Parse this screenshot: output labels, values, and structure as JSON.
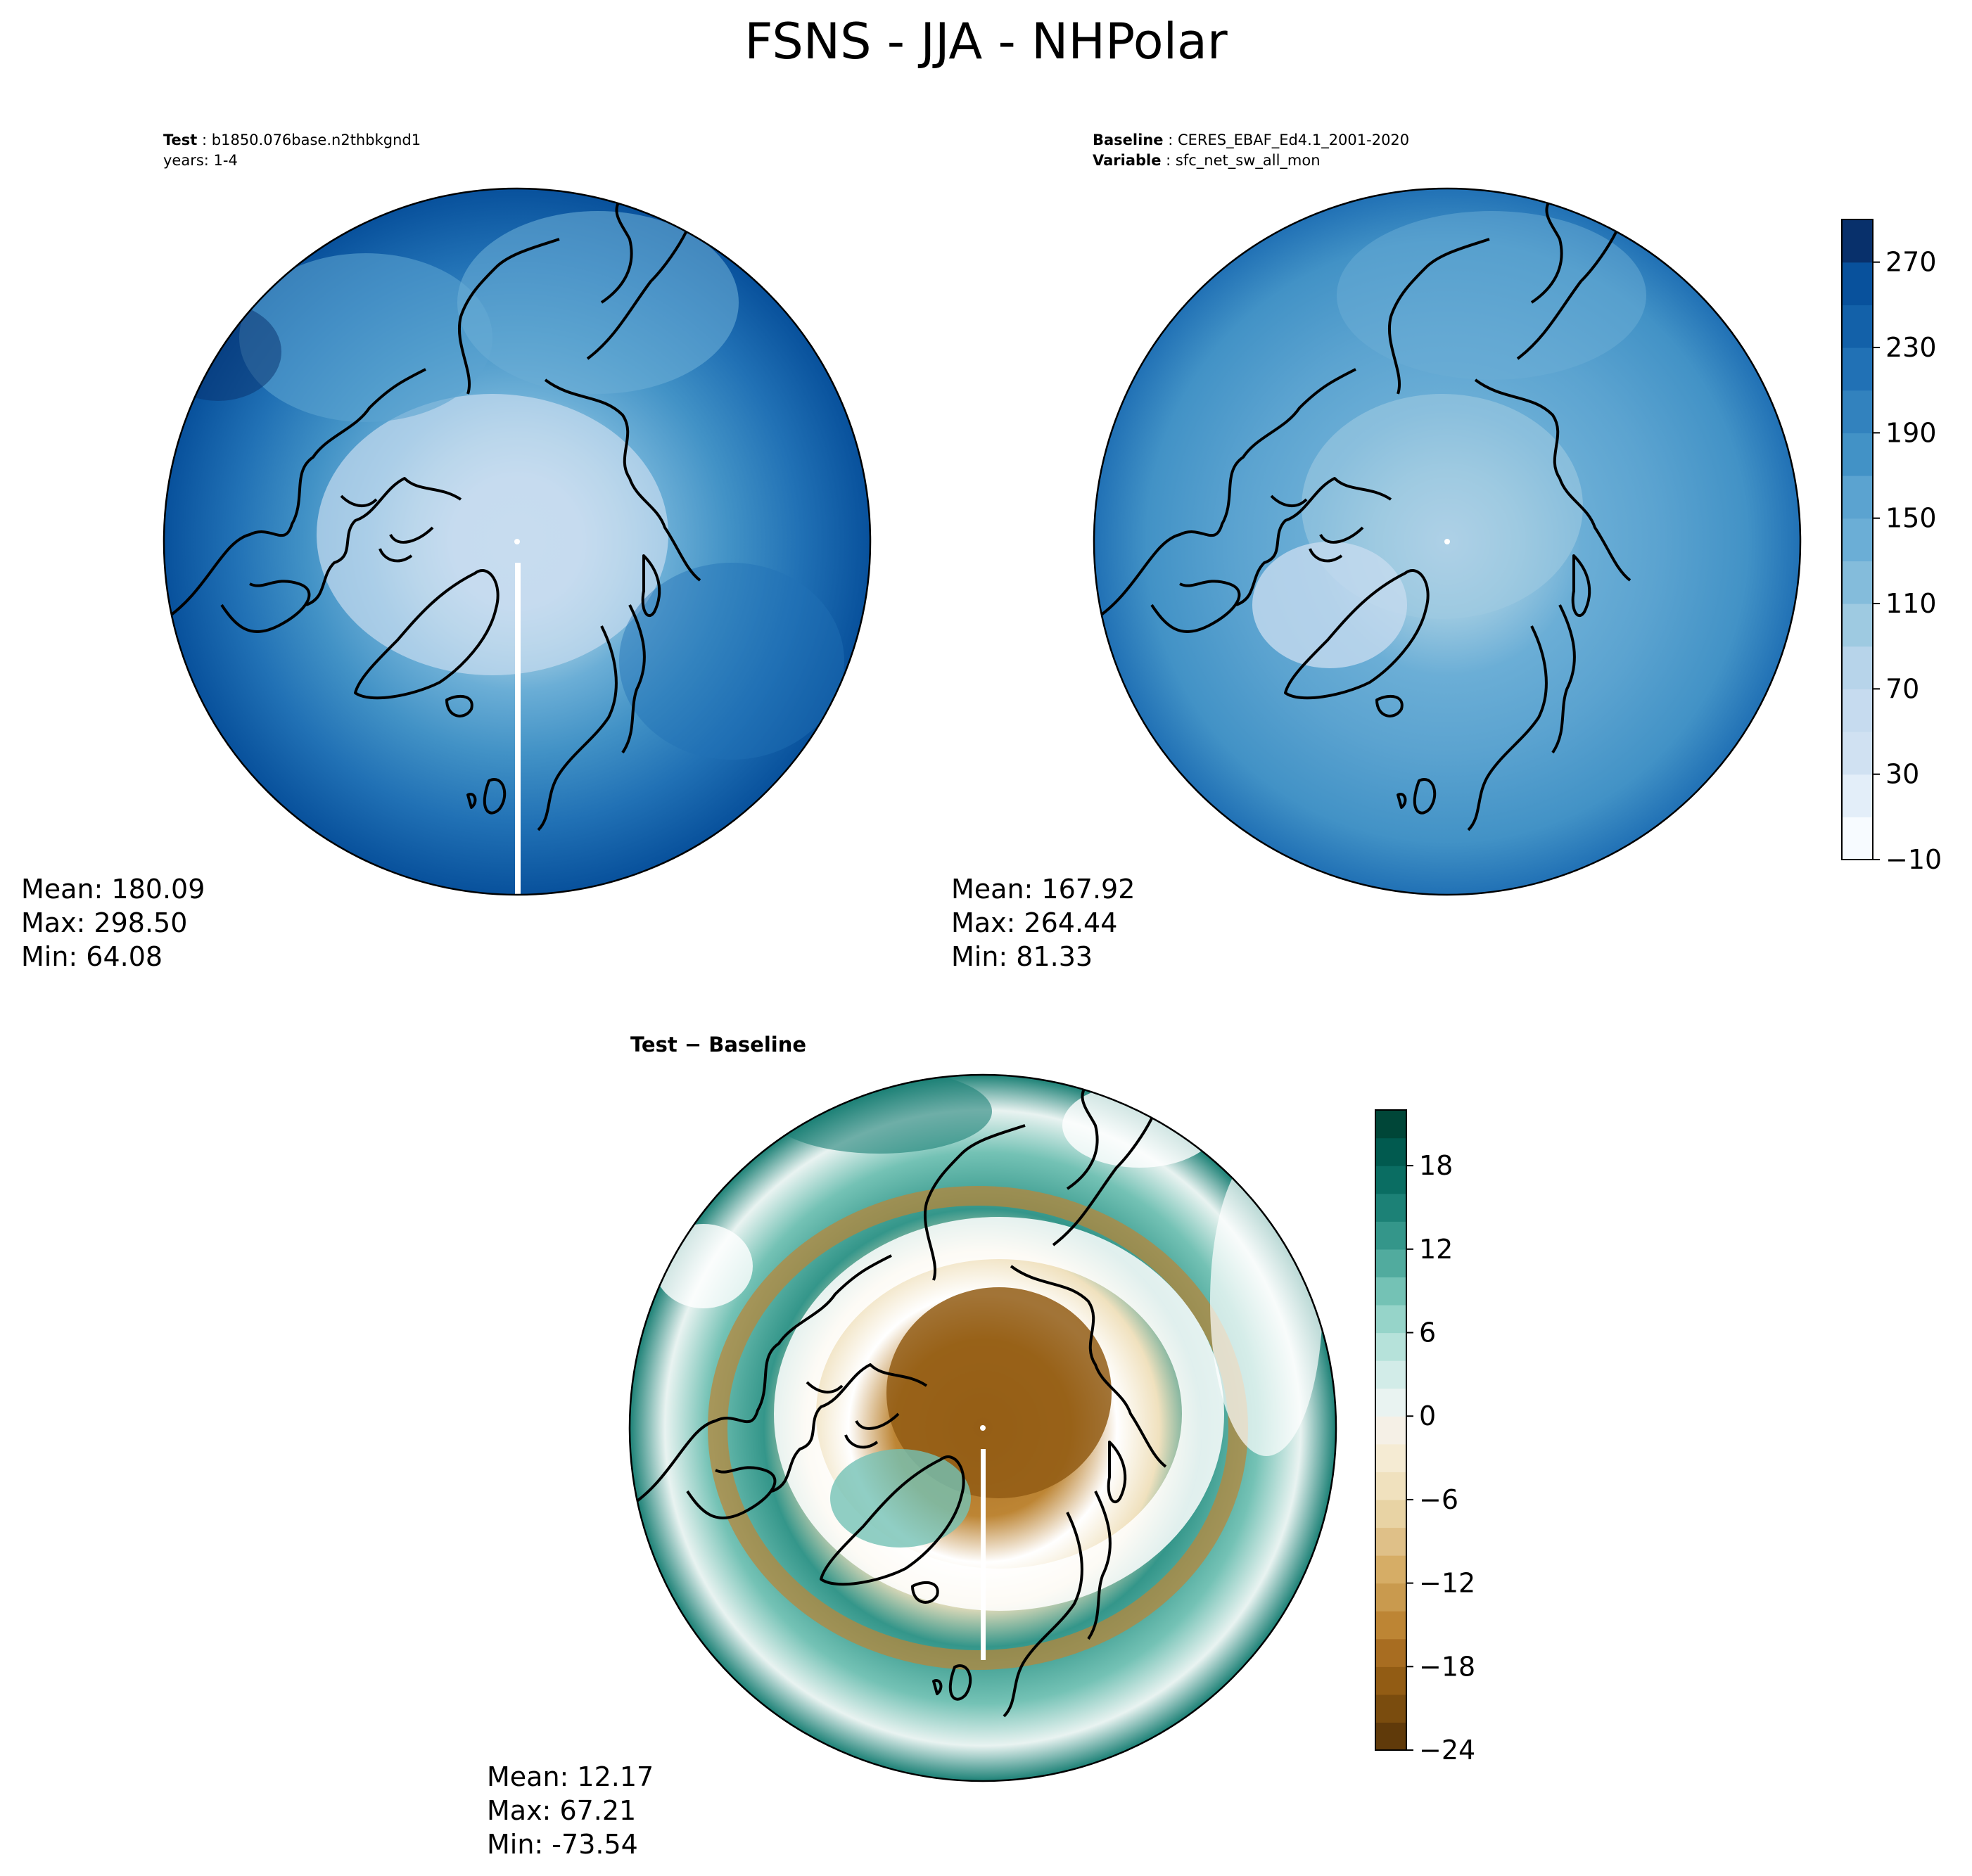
{
  "title": "FSNS - JJA - NHPolar",
  "test_panel": {
    "label": "Test",
    "case": "b1850.076base.n2thbkgnd1",
    "years": "years: 1-4",
    "stats": {
      "mean": "Mean: 180.09",
      "max": "Max: 298.50",
      "min": "Min: 64.08"
    }
  },
  "baseline_panel": {
    "label": "Baseline",
    "dataset": "CERES_EBAF_Ed4.1_2001-2020",
    "variable_label": "Variable",
    "variable": "sfc_net_sw_all_mon",
    "stats": {
      "mean": "Mean: 167.92",
      "max": "Max: 264.44",
      "min": "Min: 81.33"
    }
  },
  "diff_panel": {
    "title": "Test − Baseline",
    "stats": {
      "mean": "Mean: 12.17",
      "max": "Max: 67.21",
      "min": "Min: -73.54"
    }
  },
  "colorbar_main": {
    "colormap": "Blues",
    "ticks": [
      "270",
      "230",
      "190",
      "150",
      "110",
      "70",
      "30",
      "−10"
    ],
    "levels": [
      -10,
      10,
      30,
      50,
      70,
      90,
      110,
      130,
      150,
      170,
      190,
      210,
      230,
      250,
      270,
      290
    ],
    "colors": [
      "#f7fbff",
      "#e3eef9",
      "#d0e1f2",
      "#c6dbef",
      "#b7d4ea",
      "#9ecae1",
      "#84bcdb",
      "#6baed6",
      "#5ba3d0",
      "#4292c6",
      "#3282be",
      "#2171b5",
      "#1361a9",
      "#08519c",
      "#08306b"
    ]
  },
  "colorbar_diff": {
    "colormap": "BrBG",
    "ticks": [
      "18",
      "12",
      "6",
      "0",
      "−6",
      "−12",
      "−18",
      "−24"
    ],
    "levels": [
      -24,
      -22,
      -20,
      -18,
      -16,
      -14,
      -12,
      -10,
      -8,
      -6,
      -4,
      -2,
      0,
      2,
      4,
      6,
      8,
      10,
      12,
      14,
      16,
      18,
      20,
      22
    ],
    "colors": [
      "#603a0a",
      "#7a4c0e",
      "#925c14",
      "#a86d21",
      "#bd8534",
      "#c99a4e",
      "#d6ad66",
      "#dfc088",
      "#e8d3a4",
      "#f0e1be",
      "#f5ebd3",
      "#f5f0e6",
      "#e9f3f1",
      "#d2ece8",
      "#b6e2da",
      "#96d4c9",
      "#74c2b5",
      "#51ab9e",
      "#34968a",
      "#1c8176",
      "#0a6d62",
      "#015a4f",
      "#004638"
    ]
  }
}
